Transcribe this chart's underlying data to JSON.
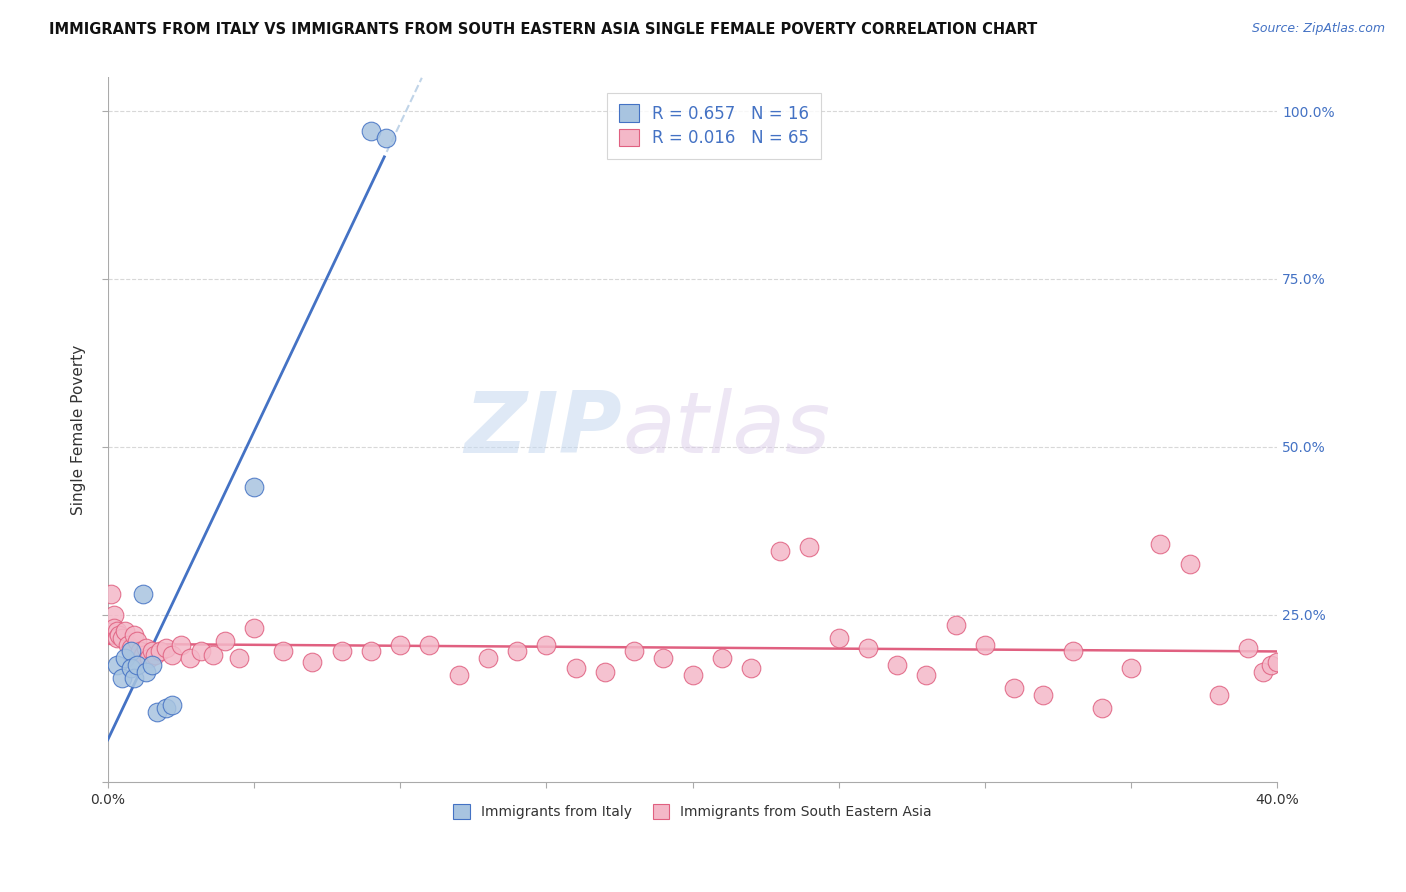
{
  "title": "IMMIGRANTS FROM ITALY VS IMMIGRANTS FROM SOUTH EASTERN ASIA SINGLE FEMALE POVERTY CORRELATION CHART",
  "source": "Source: ZipAtlas.com",
  "ylabel": "Single Female Poverty",
  "xlim": [
    0.0,
    0.4
  ],
  "ylim": [
    0.0,
    1.05
  ],
  "xticks": [
    0.0,
    0.05,
    0.1,
    0.15,
    0.2,
    0.25,
    0.3,
    0.35,
    0.4
  ],
  "yticks": [
    0.0,
    0.25,
    0.5,
    0.75,
    1.0
  ],
  "italy_color": "#a8c4e0",
  "italy_edge_color": "#4472c4",
  "sea_color": "#f4b8c8",
  "sea_edge_color": "#e06080",
  "italy_R": 0.657,
  "italy_N": 16,
  "sea_R": 0.016,
  "sea_N": 65,
  "italy_line_color": "#4472c4",
  "sea_line_color": "#e06080",
  "trend_ext_color": "#c0d4e8",
  "grid_color": "#d8d8d8",
  "watermark_zip": "ZIP",
  "watermark_atlas": "atlas",
  "italy_x": [
    0.003,
    0.005,
    0.006,
    0.008,
    0.008,
    0.009,
    0.01,
    0.012,
    0.013,
    0.015,
    0.017,
    0.02,
    0.022,
    0.05,
    0.09,
    0.095
  ],
  "italy_y": [
    0.175,
    0.155,
    0.185,
    0.195,
    0.17,
    0.155,
    0.175,
    0.28,
    0.165,
    0.175,
    0.105,
    0.11,
    0.115,
    0.44,
    0.97,
    0.96
  ],
  "sea_x": [
    0.001,
    0.002,
    0.002,
    0.003,
    0.003,
    0.004,
    0.005,
    0.006,
    0.007,
    0.008,
    0.009,
    0.01,
    0.011,
    0.012,
    0.013,
    0.014,
    0.015,
    0.016,
    0.018,
    0.02,
    0.022,
    0.025,
    0.028,
    0.032,
    0.036,
    0.04,
    0.045,
    0.05,
    0.06,
    0.07,
    0.08,
    0.09,
    0.1,
    0.11,
    0.12,
    0.13,
    0.14,
    0.15,
    0.16,
    0.17,
    0.18,
    0.19,
    0.2,
    0.21,
    0.22,
    0.23,
    0.24,
    0.25,
    0.26,
    0.27,
    0.28,
    0.29,
    0.3,
    0.31,
    0.32,
    0.33,
    0.34,
    0.35,
    0.36,
    0.37,
    0.38,
    0.39,
    0.395,
    0.398,
    0.4
  ],
  "sea_y": [
    0.28,
    0.25,
    0.23,
    0.225,
    0.215,
    0.22,
    0.215,
    0.225,
    0.205,
    0.2,
    0.22,
    0.21,
    0.195,
    0.19,
    0.2,
    0.185,
    0.195,
    0.19,
    0.195,
    0.2,
    0.19,
    0.205,
    0.185,
    0.195,
    0.19,
    0.21,
    0.185,
    0.23,
    0.195,
    0.18,
    0.195,
    0.195,
    0.205,
    0.205,
    0.16,
    0.185,
    0.195,
    0.205,
    0.17,
    0.165,
    0.195,
    0.185,
    0.16,
    0.185,
    0.17,
    0.345,
    0.35,
    0.215,
    0.2,
    0.175,
    0.16,
    0.235,
    0.205,
    0.14,
    0.13,
    0.195,
    0.11,
    0.17,
    0.355,
    0.325,
    0.13,
    0.2,
    0.165,
    0.175,
    0.18
  ]
}
